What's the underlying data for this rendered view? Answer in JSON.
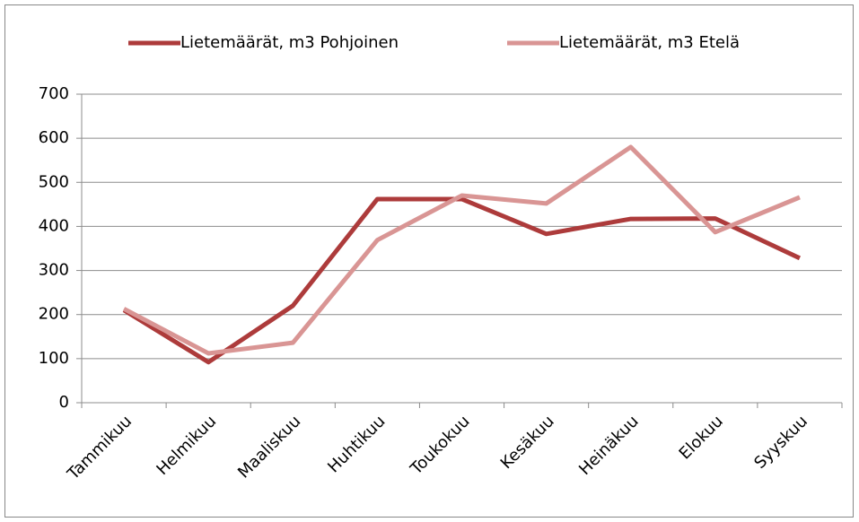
{
  "chart_data": {
    "type": "line",
    "categories": [
      "Tammikuu",
      "Helmikuu",
      "Maaliskuu",
      "Huhtikuu",
      "Toukokuu",
      "Kesäkuu",
      "Heinäkuu",
      "Elokuu",
      "Syyskuu"
    ],
    "series": [
      {
        "name": "Lietemäärät, m3 Pohjoinen",
        "color": "#ad3b3b",
        "values": [
          210,
          92,
          220,
          462,
          462,
          383,
          417,
          418,
          328
        ]
      },
      {
        "name": "Lietemäärät, m3 Etelä",
        "color": "#d99594",
        "values": [
          213,
          112,
          136,
          369,
          470,
          452,
          580,
          387,
          466
        ]
      }
    ],
    "ylim": [
      0,
      700
    ],
    "yticks": [
      0,
      100,
      200,
      300,
      400,
      500,
      600,
      700
    ],
    "grid": true,
    "legend": "top"
  }
}
